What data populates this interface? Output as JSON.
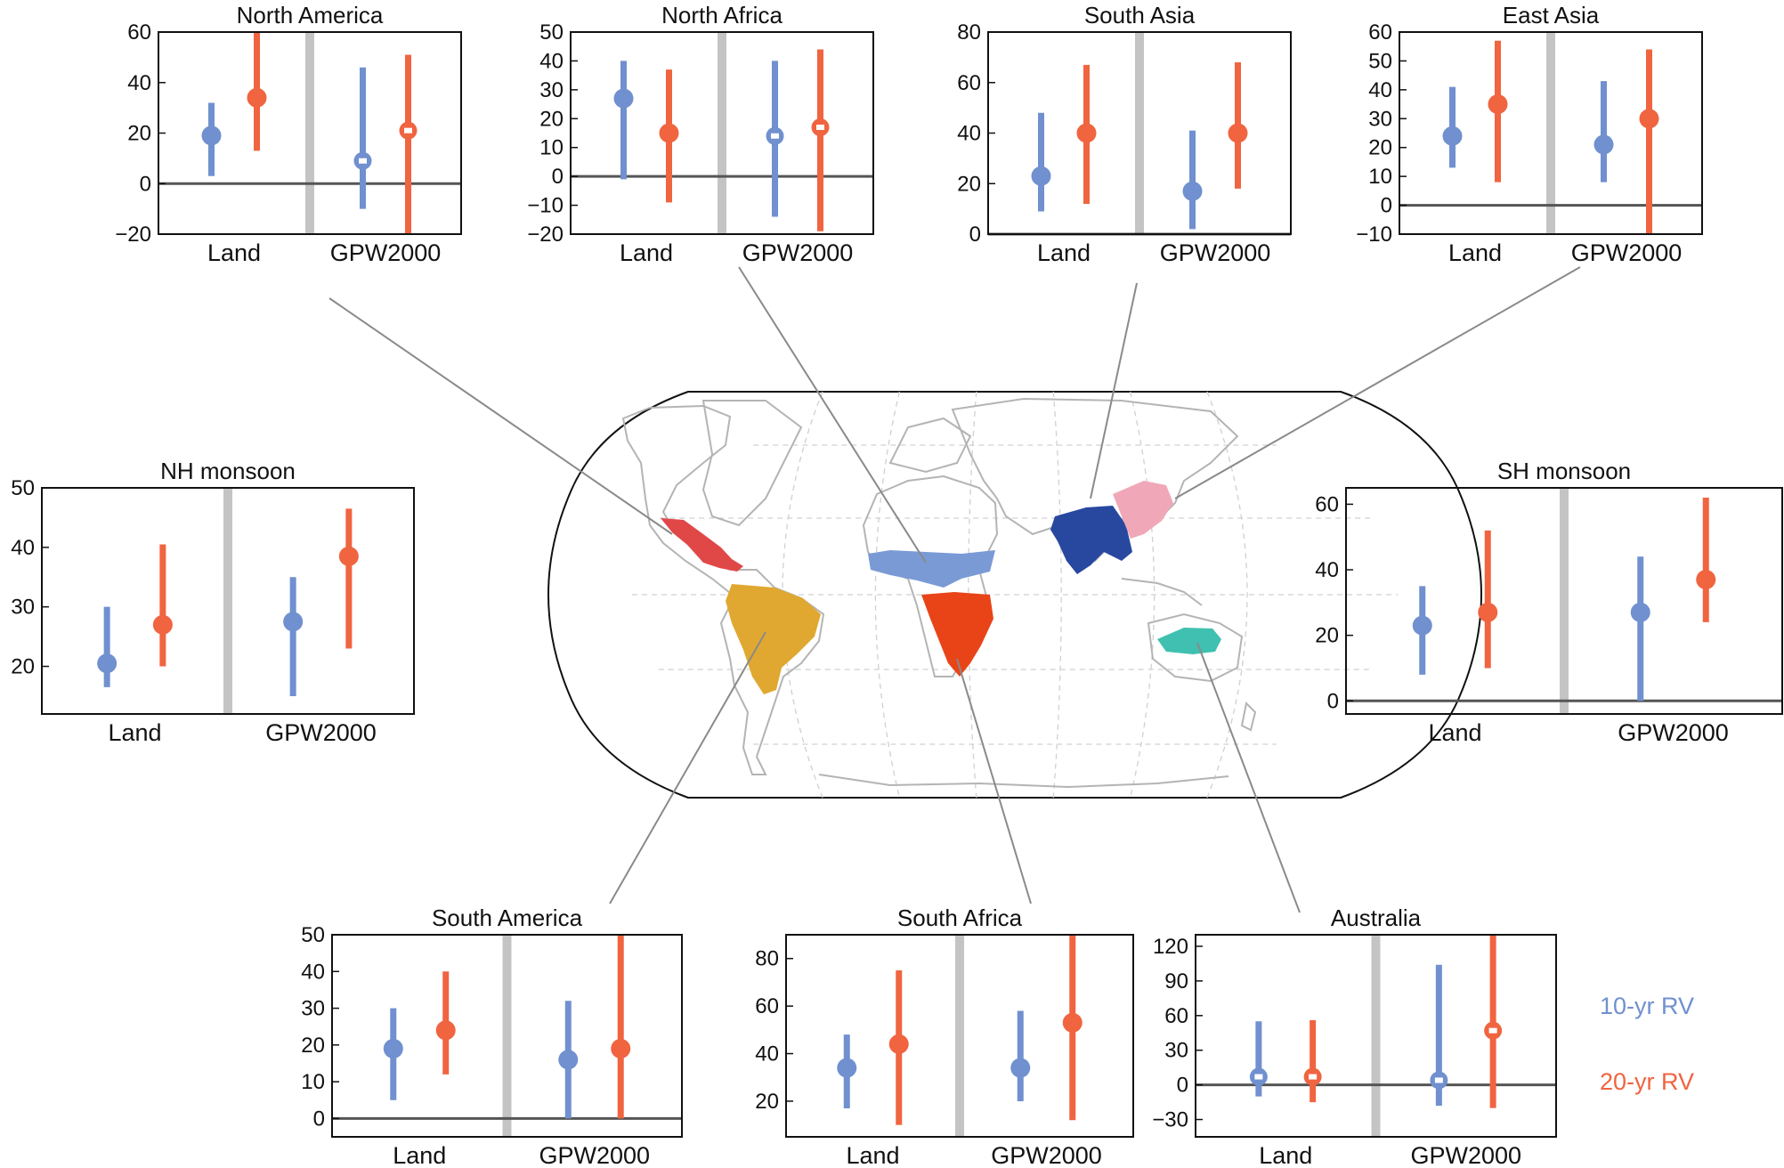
{
  "colors": {
    "rv10": "#7090cf",
    "rv20": "#f06440",
    "divider": "#c4c4c4",
    "leader": "#8a8a8a",
    "ocean_grid": "#d0d0d0",
    "coast": "#b4b4b4"
  },
  "legend": {
    "rv10_label": "10-yr RV",
    "rv20_label": "20-yr RV"
  },
  "map": {
    "regions": [
      {
        "name": "North America",
        "color": "#e04848"
      },
      {
        "name": "South America",
        "color": "#e0a830"
      },
      {
        "name": "North Africa",
        "color": "#7a9ad6"
      },
      {
        "name": "South Africa",
        "color": "#e84418"
      },
      {
        "name": "South Asia",
        "color": "#2848a0"
      },
      {
        "name": "East Asia",
        "color": "#f0a8b8"
      },
      {
        "name": "Australia",
        "color": "#40c0b0"
      }
    ]
  },
  "chart_data": [
    {
      "type": "errorbar",
      "title": "North America",
      "categories": [
        "Land",
        "GPW2000"
      ],
      "ylim": [
        -20,
        60
      ],
      "yticks": [
        -20,
        0,
        20,
        40,
        60
      ],
      "series": [
        {
          "name": "10-yr RV",
          "points": [
            {
              "value": 19,
              "low": 3,
              "high": 32,
              "open": false
            },
            {
              "value": 9,
              "low": -10,
              "high": 46,
              "open": true
            }
          ]
        },
        {
          "name": "20-yr RV",
          "points": [
            {
              "value": 34,
              "low": 13,
              "high": 60,
              "open": false
            },
            {
              "value": 21,
              "low": -20,
              "high": 51,
              "open": true
            }
          ]
        }
      ]
    },
    {
      "type": "errorbar",
      "title": "North Africa",
      "categories": [
        "Land",
        "GPW2000"
      ],
      "ylim": [
        -20,
        50
      ],
      "yticks": [
        -20,
        -10,
        0,
        10,
        20,
        30,
        40,
        50
      ],
      "series": [
        {
          "name": "10-yr RV",
          "points": [
            {
              "value": 27,
              "low": -1,
              "high": 40,
              "open": false
            },
            {
              "value": 14,
              "low": -14,
              "high": 40,
              "open": true
            }
          ]
        },
        {
          "name": "20-yr RV",
          "points": [
            {
              "value": 15,
              "low": -9,
              "high": 37,
              "open": false
            },
            {
              "value": 17,
              "low": -19,
              "high": 44,
              "open": true
            }
          ]
        }
      ]
    },
    {
      "type": "errorbar",
      "title": "South Asia",
      "categories": [
        "Land",
        "GPW2000"
      ],
      "ylim": [
        0,
        80
      ],
      "yticks": [
        0,
        20,
        40,
        60,
        80
      ],
      "series": [
        {
          "name": "10-yr RV",
          "points": [
            {
              "value": 23,
              "low": 9,
              "high": 48,
              "open": false
            },
            {
              "value": 17,
              "low": 2,
              "high": 41,
              "open": false
            }
          ]
        },
        {
          "name": "20-yr RV",
          "points": [
            {
              "value": 40,
              "low": 12,
              "high": 67,
              "open": false
            },
            {
              "value": 40,
              "low": 18,
              "high": 68,
              "open": false
            }
          ]
        }
      ]
    },
    {
      "type": "errorbar",
      "title": "East Asia",
      "categories": [
        "Land",
        "GPW2000"
      ],
      "ylim": [
        -10,
        60
      ],
      "yticks": [
        -10,
        0,
        10,
        20,
        30,
        40,
        50,
        60
      ],
      "series": [
        {
          "name": "10-yr RV",
          "points": [
            {
              "value": 24,
              "low": 13,
              "high": 41,
              "open": false
            },
            {
              "value": 21,
              "low": 8,
              "high": 43,
              "open": false
            }
          ]
        },
        {
          "name": "20-yr RV",
          "points": [
            {
              "value": 35,
              "low": 8,
              "high": 57,
              "open": false
            },
            {
              "value": 30,
              "low": -10,
              "high": 54,
              "open": false
            }
          ]
        }
      ]
    },
    {
      "type": "errorbar",
      "title": "NH monsoon",
      "categories": [
        "Land",
        "GPW2000"
      ],
      "ylim": [
        12,
        50
      ],
      "yticks": [
        20,
        30,
        40,
        50
      ],
      "series": [
        {
          "name": "10-yr RV",
          "points": [
            {
              "value": 20.5,
              "low": 16.5,
              "high": 30,
              "open": false
            },
            {
              "value": 27.5,
              "low": 15,
              "high": 35,
              "open": false
            }
          ]
        },
        {
          "name": "20-yr RV",
          "points": [
            {
              "value": 27,
              "low": 20,
              "high": 40.5,
              "open": false
            },
            {
              "value": 38.5,
              "low": 23,
              "high": 46.5,
              "open": false
            }
          ]
        }
      ]
    },
    {
      "type": "errorbar",
      "title": "SH monsoon",
      "categories": [
        "Land",
        "GPW2000"
      ],
      "ylim": [
        -4,
        65
      ],
      "yticks": [
        0,
        20,
        40,
        60
      ],
      "series": [
        {
          "name": "10-yr RV",
          "points": [
            {
              "value": 23,
              "low": 8,
              "high": 35,
              "open": false
            },
            {
              "value": 27,
              "low": 0,
              "high": 44,
              "open": false
            }
          ]
        },
        {
          "name": "20-yr RV",
          "points": [
            {
              "value": 27,
              "low": 10,
              "high": 52,
              "open": false
            },
            {
              "value": 37,
              "low": 24,
              "high": 62,
              "open": false
            }
          ]
        }
      ]
    },
    {
      "type": "errorbar",
      "title": "South America",
      "categories": [
        "Land",
        "GPW2000"
      ],
      "ylim": [
        -5,
        50
      ],
      "yticks": [
        0,
        10,
        20,
        30,
        40,
        50
      ],
      "series": [
        {
          "name": "10-yr RV",
          "points": [
            {
              "value": 19,
              "low": 5,
              "high": 30,
              "open": false
            },
            {
              "value": 16,
              "low": 0,
              "high": 32,
              "open": false
            }
          ]
        },
        {
          "name": "20-yr RV",
          "points": [
            {
              "value": 24,
              "low": 12,
              "high": 40,
              "open": false
            },
            {
              "value": 19,
              "low": 0,
              "high": 50,
              "open": false
            }
          ]
        }
      ]
    },
    {
      "type": "errorbar",
      "title": "South Africa",
      "categories": [
        "Land",
        "GPW2000"
      ],
      "ylim": [
        5,
        90
      ],
      "yticks": [
        20,
        40,
        60,
        80
      ],
      "series": [
        {
          "name": "10-yr RV",
          "points": [
            {
              "value": 34,
              "low": 17,
              "high": 48,
              "open": false
            },
            {
              "value": 34,
              "low": 20,
              "high": 58,
              "open": false
            }
          ]
        },
        {
          "name": "20-yr RV",
          "points": [
            {
              "value": 44,
              "low": 10,
              "high": 75,
              "open": false
            },
            {
              "value": 53,
              "low": 12,
              "high": 90,
              "open": false
            }
          ]
        }
      ]
    },
    {
      "type": "errorbar",
      "title": "Australia",
      "categories": [
        "Land",
        "GPW2000"
      ],
      "ylim": [
        -45,
        130
      ],
      "yticks": [
        -30,
        0,
        30,
        60,
        90,
        120
      ],
      "series": [
        {
          "name": "10-yr RV",
          "points": [
            {
              "value": 7,
              "low": -10,
              "high": 55,
              "open": true
            },
            {
              "value": 4,
              "low": -18,
              "high": 104,
              "open": true
            }
          ]
        },
        {
          "name": "20-yr RV",
          "points": [
            {
              "value": 7,
              "low": -15,
              "high": 56,
              "open": true
            },
            {
              "value": 47,
              "low": -20,
              "high": 130,
              "open": true
            }
          ]
        }
      ]
    }
  ]
}
